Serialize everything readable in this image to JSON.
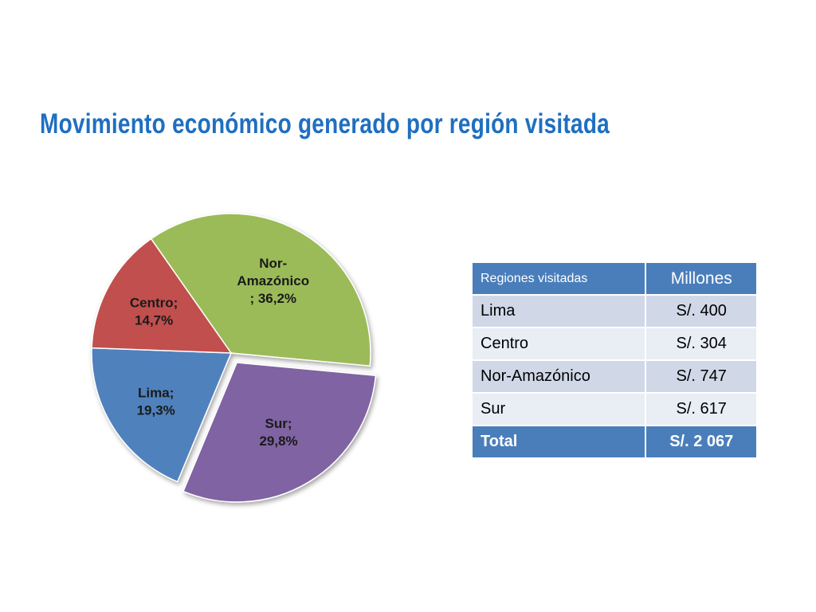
{
  "title": "Movimiento económico generado por región visitada",
  "chart_data": {
    "type": "pie",
    "slices": [
      {
        "name": "Nor-Amazónico",
        "value": 36.2,
        "label": [
          "Nor-",
          "Amazónico",
          "; 36,2%"
        ],
        "color": "#9bbb59"
      },
      {
        "name": "Sur",
        "value": 29.8,
        "label": [
          "Sur;",
          "29,8%"
        ],
        "color": "#8064a2"
      },
      {
        "name": "Lima",
        "value": 19.3,
        "label": [
          "Lima;",
          "19,3%"
        ],
        "color": "#4f81bd"
      },
      {
        "name": "Centro",
        "value": 14.7,
        "label": [
          "Centro;",
          "14,7%"
        ],
        "color": "#c0504d"
      }
    ]
  },
  "table": {
    "headers": [
      "Regiones visitadas",
      "Millones"
    ],
    "rows": [
      [
        "Lima",
        "S/. 400"
      ],
      [
        "Centro",
        "S/. 304"
      ],
      [
        "Nor-Amazónico",
        "S/. 747"
      ],
      [
        "Sur",
        "S/. 617"
      ]
    ],
    "total": [
      "Total",
      "S/. 2 067"
    ]
  }
}
